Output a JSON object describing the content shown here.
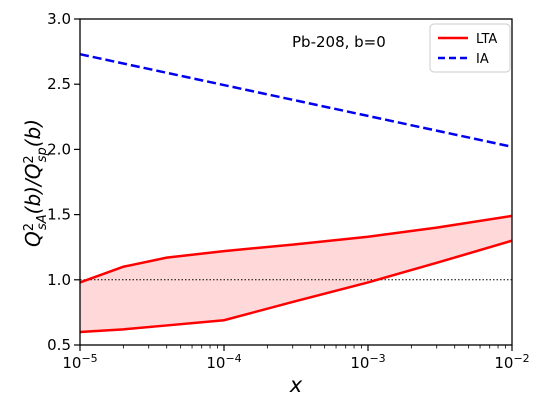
{
  "chart_data": {
    "type": "line",
    "annotation": "Pb-208, b=0",
    "xlabel": "x",
    "ylabel": {
      "base1": "Q",
      "sup1": "2",
      "sub1": "sA",
      "mid": "(b)/Q",
      "sup2": "2",
      "sub2": "sp",
      "end": "(b)"
    },
    "xscale": "log",
    "xlim": [
      1e-05,
      0.01
    ],
    "ylim": [
      0.5,
      3.0
    ],
    "xticks": [
      {
        "value": 1e-05,
        "base": "10",
        "exp": "−5"
      },
      {
        "value": 0.0001,
        "base": "10",
        "exp": "−4"
      },
      {
        "value": 0.001,
        "base": "10",
        "exp": "−3"
      },
      {
        "value": 0.01,
        "base": "10",
        "exp": "−2"
      }
    ],
    "yticks": [
      "0.5",
      "1.0",
      "1.5",
      "2.0",
      "2.5",
      "3.0"
    ],
    "reference_line": {
      "y": 1.0,
      "style": "dotted",
      "color": "#000000"
    },
    "legend_position": "top-right",
    "series": [
      {
        "name": "LTA",
        "color": "#ff0000",
        "style": "solid",
        "band_fill": "#ffd9d9",
        "upper": {
          "x": [
            1e-05,
            2e-05,
            4e-05,
            0.0001,
            0.0003,
            0.001,
            0.003,
            0.01
          ],
          "y": [
            0.98,
            1.1,
            1.17,
            1.22,
            1.27,
            1.33,
            1.4,
            1.49
          ]
        },
        "lower": {
          "x": [
            1e-05,
            2e-05,
            4e-05,
            0.0001,
            0.0003,
            0.001,
            0.003,
            0.01
          ],
          "y": [
            0.6,
            0.62,
            0.65,
            0.69,
            0.83,
            0.98,
            1.13,
            1.3
          ]
        }
      },
      {
        "name": "IA",
        "color": "#0000ee",
        "style": "dashed",
        "x": [
          1e-05,
          0.01
        ],
        "y": [
          2.73,
          2.02
        ]
      }
    ]
  }
}
